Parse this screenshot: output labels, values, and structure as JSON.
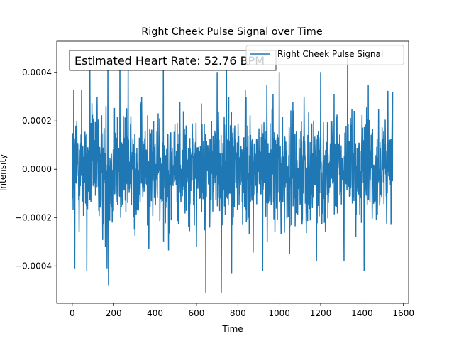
{
  "chart_data": {
    "type": "line",
    "title": "Right Cheek Pulse Signal over Time",
    "xlabel": "Time",
    "ylabel": "Intensity",
    "xlim": [
      -75,
      1625
    ],
    "ylim": [
      -0.000555,
      0.00053
    ],
    "x_ticks": [
      0,
      200,
      400,
      600,
      800,
      1000,
      1200,
      1400,
      1600
    ],
    "x_tick_labels": [
      "0",
      "200",
      "400",
      "600",
      "800",
      "1000",
      "1200",
      "1400",
      "1600"
    ],
    "y_ticks": [
      -0.0004,
      -0.0002,
      0.0,
      0.0002,
      0.0004
    ],
    "y_tick_labels": [
      "−0.0004",
      "−0.0002",
      "0.0000",
      "0.0002",
      "0.0004"
    ],
    "grid": false,
    "legend_position": "upper-right",
    "annotation": "Estimated Heart Rate: 52.76 BPM",
    "series": [
      {
        "name": "Right Cheek Pulse Signal",
        "color": "#1f77b4",
        "x_start": 0,
        "x_end": 1548,
        "n_points": 1549,
        "amplitude_sigma": 0.00015,
        "keypoints": [
          [
            0,
            0.00015
          ],
          [
            4,
            -0.00017
          ],
          [
            7,
            0.00033
          ],
          [
            12,
            -0.00041
          ],
          [
            22,
            0.0002
          ],
          [
            45,
            0.00033
          ],
          [
            70,
            -0.00042
          ],
          [
            85,
            0.00045
          ],
          [
            120,
            0.0003
          ],
          [
            160,
            -0.00032
          ],
          [
            168,
            -0.00041
          ],
          [
            172,
            0.00045
          ],
          [
            175,
            -0.00048
          ],
          [
            230,
            0.00046
          ],
          [
            270,
            0.00045
          ],
          [
            300,
            -0.00025
          ],
          [
            335,
            0.0003
          ],
          [
            370,
            -0.00033
          ],
          [
            440,
            0.00047
          ],
          [
            520,
            0.00028
          ],
          [
            600,
            -0.00032
          ],
          [
            645,
            -0.00051
          ],
          [
            700,
            0.0004
          ],
          [
            720,
            -0.00051
          ],
          [
            745,
            0.00045
          ],
          [
            770,
            -0.00043
          ],
          [
            840,
            0.0003
          ],
          [
            920,
            -0.00042
          ],
          [
            940,
            0.00035
          ],
          [
            1000,
            0.0004
          ],
          [
            1050,
            -0.00035
          ],
          [
            1120,
            0.0003
          ],
          [
            1180,
            -0.00038
          ],
          [
            1200,
            0.0004
          ],
          [
            1330,
            0.00046
          ],
          [
            1370,
            -0.00028
          ],
          [
            1410,
            -0.00042
          ],
          [
            1430,
            0.00035
          ],
          [
            1480,
            0.00025
          ],
          [
            1520,
            -0.00015
          ],
          [
            1540,
            -0.00023
          ],
          [
            1548,
            0.00032
          ]
        ]
      }
    ]
  }
}
